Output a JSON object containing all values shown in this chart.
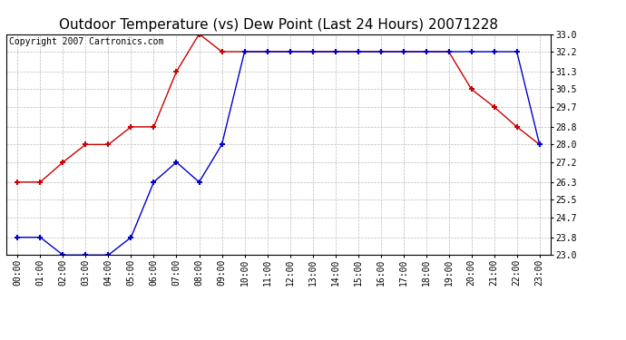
{
  "title": "Outdoor Temperature (vs) Dew Point (Last 24 Hours) 20071228",
  "copyright_text": "Copyright 2007 Cartronics.com",
  "x_labels": [
    "00:00",
    "01:00",
    "02:00",
    "03:00",
    "04:00",
    "05:00",
    "06:00",
    "07:00",
    "08:00",
    "09:00",
    "10:00",
    "11:00",
    "12:00",
    "13:00",
    "14:00",
    "15:00",
    "16:00",
    "17:00",
    "18:00",
    "19:00",
    "20:00",
    "21:00",
    "22:00",
    "23:00"
  ],
  "ylim": [
    23.0,
    33.0
  ],
  "yticks": [
    23.0,
    23.8,
    24.7,
    25.5,
    26.3,
    27.2,
    28.0,
    28.8,
    29.7,
    30.5,
    31.3,
    32.2,
    33.0
  ],
  "red_data": [
    26.3,
    26.3,
    27.2,
    28.0,
    28.0,
    28.8,
    28.8,
    31.3,
    33.0,
    32.2,
    32.2,
    32.2,
    32.2,
    32.2,
    32.2,
    32.2,
    32.2,
    32.2,
    32.2,
    32.2,
    30.5,
    29.7,
    28.8,
    28.0
  ],
  "blue_data": [
    23.8,
    23.8,
    23.0,
    23.0,
    23.0,
    23.8,
    26.3,
    27.2,
    26.3,
    28.0,
    32.2,
    32.2,
    32.2,
    32.2,
    32.2,
    32.2,
    32.2,
    32.2,
    32.2,
    32.2,
    32.2,
    32.2,
    32.2,
    28.0
  ],
  "red_color": "#cc0000",
  "blue_color": "#0000cc",
  "grid_color": "#bbbbbb",
  "background_color": "#ffffff",
  "title_fontsize": 11,
  "copyright_fontsize": 7,
  "tick_fontsize": 7
}
